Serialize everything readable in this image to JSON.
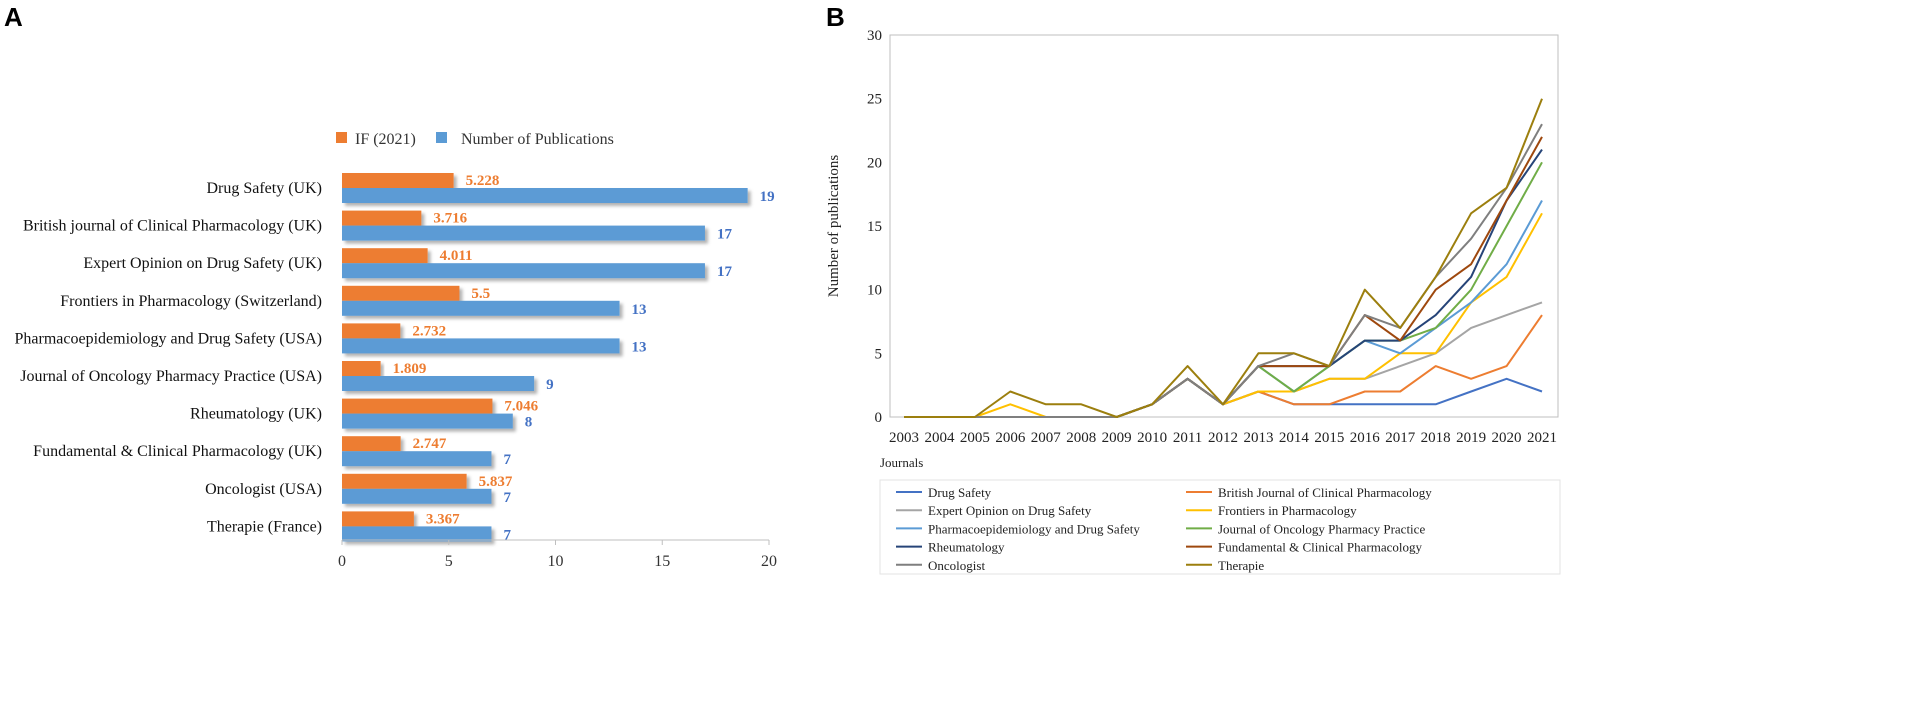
{
  "panels": {
    "a": "A",
    "b": "B"
  },
  "colors": {
    "if": "#ED7D31",
    "pubs": "#5B9BD5",
    "if_text": "#ED7D31",
    "pubs_text": "#4472C4"
  },
  "chart_data": [
    {
      "type": "bar",
      "orientation": "horizontal",
      "panel": "A",
      "legend": [
        "IF (2021)",
        "Number of Publications"
      ],
      "legend_position": "top",
      "categories": [
        "Drug Safety (UK)",
        "British journal of Clinical Pharmacology (UK)",
        "Expert Opinion on Drug Safety (UK)",
        "Frontiers in Pharmacology (Switzerland)",
        "Pharmacoepidemiology and Drug Safety (USA)",
        "Journal of Oncology Pharmacy Practice (USA)",
        "Rheumatology (UK)",
        "Fundamental & Clinical Pharmacology (UK)",
        "Oncologist (USA)",
        "Therapie (France)"
      ],
      "series": [
        {
          "name": "IF (2021)",
          "values": [
            5.228,
            3.716,
            4.011,
            5.5,
            2.732,
            1.809,
            7.046,
            2.747,
            5.837,
            3.367
          ],
          "labels": [
            "5.228",
            "3.716",
            "4.011",
            "5.5",
            "2.732",
            "1.809",
            "7.046",
            "2.747",
            "5.837",
            "3.367"
          ]
        },
        {
          "name": "Number of Publications",
          "values": [
            19,
            17,
            17,
            13,
            13,
            9,
            8,
            7,
            7,
            7
          ],
          "labels": [
            "19",
            "17",
            "17",
            "13",
            "13",
            "9",
            "8",
            "7",
            "7",
            "7"
          ]
        }
      ],
      "xlim": [
        0,
        20
      ],
      "xticks": [
        0,
        5,
        10,
        15,
        20
      ],
      "grid": false
    },
    {
      "type": "line",
      "panel": "B",
      "ylabel": "Number of publications",
      "legend_title": "Journals",
      "legend_position": "bottom",
      "x": [
        "2003",
        "2004",
        "2005",
        "2006",
        "2007",
        "2008",
        "2009",
        "2010",
        "2011",
        "2012",
        "2013",
        "2014",
        "2015",
        "2016",
        "2017",
        "2018",
        "2019",
        "2020",
        "2021"
      ],
      "ylim": [
        0,
        30
      ],
      "yticks": [
        0,
        5,
        10,
        15,
        20,
        25,
        30
      ],
      "grid": false,
      "series": [
        {
          "name": "Drug Safety",
          "color": "#4472C4",
          "values": [
            0,
            0,
            0,
            0,
            0,
            0,
            0,
            1,
            3,
            1,
            2,
            1,
            1,
            1,
            1,
            1,
            2,
            3,
            2
          ]
        },
        {
          "name": "British Journal of Clinical Pharmacology",
          "color": "#ED7D31",
          "values": [
            0,
            0,
            0,
            0,
            0,
            0,
            0,
            1,
            3,
            1,
            2,
            1,
            1,
            2,
            2,
            4,
            3,
            4,
            8
          ]
        },
        {
          "name": "Expert Opinion on Drug Safety",
          "color": "#A5A5A5",
          "values": [
            0,
            0,
            0,
            0,
            0,
            0,
            0,
            1,
            3,
            1,
            2,
            2,
            3,
            3,
            4,
            5,
            7,
            8,
            9
          ]
        },
        {
          "name": "Frontiers in Pharmacology",
          "color": "#FFC000",
          "values": [
            0,
            0,
            0,
            1,
            0,
            0,
            0,
            1,
            3,
            1,
            2,
            2,
            3,
            3,
            5,
            5,
            9,
            11,
            16
          ]
        },
        {
          "name": "Pharmacoepidemiology and Drug Safety",
          "color": "#5B9BD5",
          "values": [
            0,
            0,
            0,
            0,
            0,
            0,
            0,
            1,
            3,
            1,
            4,
            2,
            4,
            6,
            5,
            7,
            9,
            12,
            17
          ]
        },
        {
          "name": "Journal of Oncology Pharmacy Practice",
          "color": "#70AD47",
          "values": [
            0,
            0,
            0,
            0,
            0,
            0,
            0,
            1,
            3,
            1,
            4,
            2,
            4,
            6,
            6,
            7,
            10,
            15,
            20
          ]
        },
        {
          "name": "Rheumatology",
          "color": "#264478",
          "values": [
            0,
            0,
            0,
            0,
            0,
            0,
            0,
            1,
            3,
            1,
            4,
            4,
            4,
            6,
            6,
            8,
            11,
            17,
            21
          ]
        },
        {
          "name": "Fundamental & Clinical Pharmacology",
          "color": "#9E480E",
          "values": [
            0,
            0,
            0,
            0,
            0,
            0,
            0,
            1,
            3,
            1,
            4,
            4,
            4,
            8,
            6,
            10,
            12,
            17,
            22
          ]
        },
        {
          "name": "Oncologist",
          "color": "#7F7F7F",
          "values": [
            0,
            0,
            0,
            0,
            0,
            0,
            0,
            1,
            3,
            1,
            4,
            5,
            4,
            8,
            7,
            11,
            14,
            18,
            23
          ]
        },
        {
          "name": "Therapie",
          "color": "#9C7F0E",
          "values": [
            0,
            0,
            0,
            2,
            1,
            1,
            0,
            1,
            4,
            1,
            5,
            5,
            4,
            10,
            7,
            11,
            16,
            18,
            25
          ]
        }
      ]
    }
  ]
}
